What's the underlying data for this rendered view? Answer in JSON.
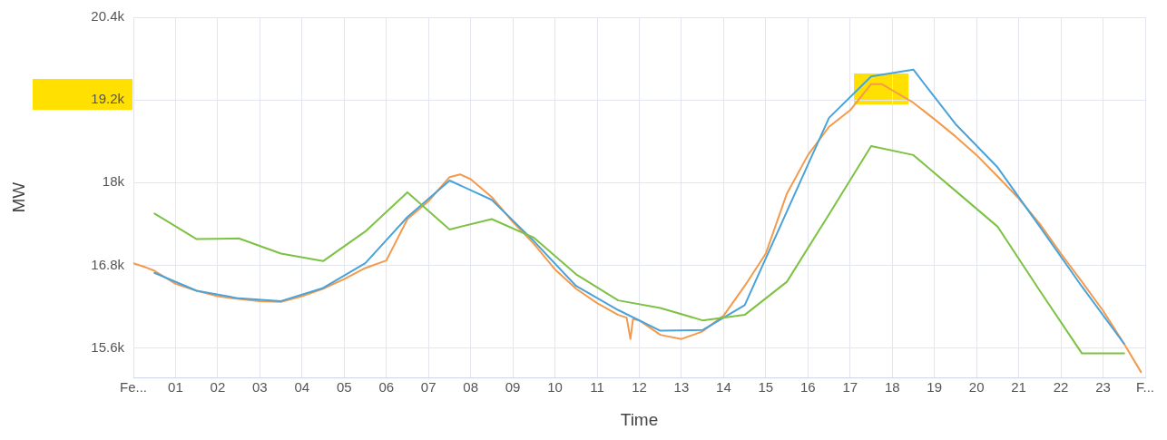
{
  "chart_data": {
    "type": "line",
    "xlabel": "Time",
    "ylabel": "MW",
    "xlim": [
      0,
      24
    ],
    "xticks": [
      {
        "value": 0,
        "label": "Fe..."
      },
      {
        "value": 1,
        "label": "01"
      },
      {
        "value": 2,
        "label": "02"
      },
      {
        "value": 3,
        "label": "03"
      },
      {
        "value": 4,
        "label": "04"
      },
      {
        "value": 5,
        "label": "05"
      },
      {
        "value": 6,
        "label": "06"
      },
      {
        "value": 7,
        "label": "07"
      },
      {
        "value": 8,
        "label": "08"
      },
      {
        "value": 9,
        "label": "09"
      },
      {
        "value": 10,
        "label": "10"
      },
      {
        "value": 11,
        "label": "11"
      },
      {
        "value": 12,
        "label": "12"
      },
      {
        "value": 13,
        "label": "13"
      },
      {
        "value": 14,
        "label": "14"
      },
      {
        "value": 15,
        "label": "15"
      },
      {
        "value": 16,
        "label": "16"
      },
      {
        "value": 17,
        "label": "17"
      },
      {
        "value": 18,
        "label": "18"
      },
      {
        "value": 19,
        "label": "19"
      },
      {
        "value": 20,
        "label": "20"
      },
      {
        "value": 21,
        "label": "21"
      },
      {
        "value": 22,
        "label": "22"
      },
      {
        "value": 23,
        "label": "23"
      },
      {
        "value": 24,
        "label": "F..."
      }
    ],
    "ylim": [
      15170,
      20400
    ],
    "yticks": [
      {
        "value": 15600,
        "label": "15.6k"
      },
      {
        "value": 16800,
        "label": "16.8k"
      },
      {
        "value": 18000,
        "label": "18k"
      },
      {
        "value": 19200,
        "label": "19.2k"
      },
      {
        "value": 20400,
        "label": "20.4k"
      }
    ],
    "grid": true,
    "legend": false,
    "marker": "none",
    "line_style": "solid",
    "series": [
      {
        "color": "#f39a4c",
        "x": [
          0,
          0.25,
          0.5,
          1,
          1.5,
          2,
          2.5,
          3,
          3.5,
          4,
          4.5,
          5,
          5.5,
          6,
          6.5,
          7,
          7.5,
          7.75,
          8,
          8.5,
          9,
          9.5,
          10,
          10.5,
          11,
          11.5,
          11.7,
          11.79,
          11.85,
          12,
          12.5,
          13,
          13.5,
          14,
          14.5,
          15,
          15.5,
          16,
          16.5,
          17,
          17.5,
          17.75,
          18,
          18.5,
          19,
          19.5,
          20,
          20.5,
          21,
          21.5,
          22,
          22.5,
          23,
          23.5,
          23.9
        ],
        "values": [
          16830,
          16780,
          16720,
          16530,
          16430,
          16350,
          16310,
          16280,
          16270,
          16350,
          16460,
          16600,
          16760,
          16870,
          17470,
          17730,
          18080,
          18120,
          18050,
          17790,
          17430,
          17110,
          16740,
          16460,
          16250,
          16080,
          16040,
          15730,
          16020,
          16000,
          15790,
          15730,
          15840,
          16070,
          16500,
          16970,
          17840,
          18400,
          18810,
          19050,
          19430,
          19430,
          19340,
          19160,
          18920,
          18670,
          18400,
          18090,
          17770,
          17400,
          16970,
          16560,
          16140,
          15660,
          15250
        ]
      },
      {
        "color": "#4aa3d8",
        "x": [
          0.5,
          1.5,
          2.5,
          3.5,
          4.5,
          5.5,
          6.5,
          7.5,
          8.5,
          9.5,
          10.5,
          11.5,
          12.5,
          13.5,
          14.5,
          15.5,
          16.5,
          17.5,
          18.5,
          19.5,
          20.5,
          21.5,
          22.5,
          23.5
        ],
        "values": [
          16690,
          16430,
          16320,
          16280,
          16470,
          16830,
          17500,
          18030,
          17750,
          17150,
          16500,
          16150,
          15850,
          15860,
          16220,
          17580,
          18940,
          19540,
          19640,
          18850,
          18220,
          17360,
          16490,
          15660
        ]
      },
      {
        "color": "#7dc242",
        "x": [
          0.5,
          1.5,
          2.5,
          3.5,
          4.5,
          5.5,
          6.5,
          7.5,
          8.5,
          9.5,
          10.5,
          11.5,
          12.5,
          13.5,
          14.5,
          15.5,
          16.5,
          17.5,
          18.5,
          19.5,
          20.5,
          21.5,
          22.5,
          23.5
        ],
        "values": [
          17550,
          17180,
          17190,
          16970,
          16860,
          17290,
          17860,
          17320,
          17470,
          17200,
          16670,
          16290,
          16180,
          16000,
          16080,
          16560,
          17540,
          18530,
          18400,
          17880,
          17360,
          16430,
          15520,
          15520
        ]
      }
    ]
  }
}
